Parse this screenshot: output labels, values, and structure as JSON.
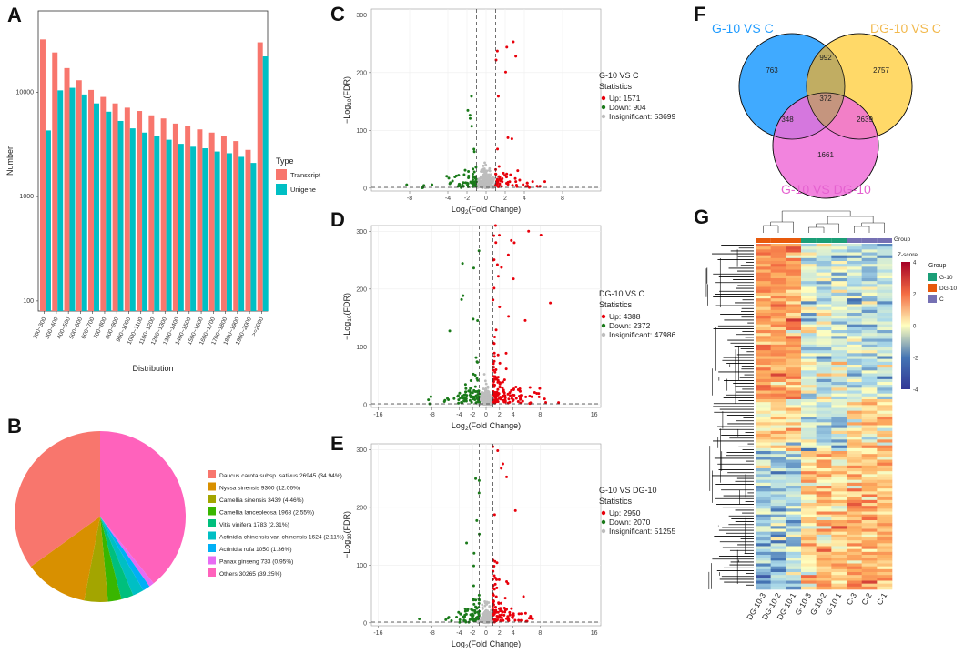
{
  "panels": {
    "A": "A",
    "B": "B",
    "C": "C",
    "D": "D",
    "E": "E",
    "F": "F",
    "G": "G"
  },
  "chart_data": [
    {
      "id": "A",
      "type": "bar",
      "title": "",
      "xlabel": "Distribution",
      "ylabel": "Number",
      "yscale": "log",
      "ylim": [
        80,
        60000
      ],
      "yticks": [
        100,
        1000,
        10000
      ],
      "yticklabels": [
        "100",
        "1000",
        "10000"
      ],
      "legend_title": "Type",
      "categories": [
        "200~300",
        "300~400",
        "400~500",
        "500~600",
        "600~700",
        "700~800",
        "800~900",
        "900~1000",
        "1000~1100",
        "1100~1200",
        "1200~1300",
        "1300~1400",
        "1400~1500",
        "1500~1600",
        "1600~1700",
        "1700~1800",
        "1800~1900",
        "1900~2000",
        ">=2000"
      ],
      "series": [
        {
          "name": "Transcript",
          "color": "#F8766D",
          "values": [
            32000,
            24000,
            17000,
            13000,
            10500,
            9000,
            7800,
            7100,
            6600,
            6000,
            5600,
            5000,
            4700,
            4400,
            4100,
            3800,
            3400,
            2800,
            30000
          ]
        },
        {
          "name": "Unigene",
          "color": "#00BFC4",
          "values": [
            4300,
            10400,
            11000,
            9500,
            7800,
            6500,
            5300,
            4500,
            4100,
            3800,
            3500,
            3200,
            3000,
            2900,
            2700,
            2600,
            2400,
            2100,
            22000
          ]
        }
      ]
    },
    {
      "id": "B",
      "type": "pie",
      "slices": [
        {
          "label": "Daucus carota subsp. sativus 26945 (34.94%)",
          "value": 34.94,
          "color": "#F8766D"
        },
        {
          "label": "Nyssa sinensis 9300 (12.06%)",
          "value": 12.06,
          "color": "#D89000"
        },
        {
          "label": "Camellia sinensis 3439 (4.46%)",
          "value": 4.46,
          "color": "#A3A500"
        },
        {
          "label": "Camellia lanceoleosa 1968 (2.55%)",
          "value": 2.55,
          "color": "#39B600"
        },
        {
          "label": "Vitis vinifera 1783 (2.31%)",
          "value": 2.31,
          "color": "#00BF7D"
        },
        {
          "label": "Actinidia chinensis var. chinensis 1624 (2.11%)",
          "value": 2.11,
          "color": "#00BFC4"
        },
        {
          "label": "Actinidia rufa 1050 (1.36%)",
          "value": 1.36,
          "color": "#00B0F6"
        },
        {
          "label": "Panax ginseng 733 (0.95%)",
          "value": 0.95,
          "color": "#E76BF3"
        },
        {
          "label": "Others 30265 (39.25%)",
          "value": 39.25,
          "color": "#FF62BC"
        }
      ]
    },
    {
      "id": "C",
      "type": "scatter",
      "xlabel": "Log2(Fold Change)",
      "ylabel": "-Log10(FDR)",
      "xlim": [
        -12,
        12
      ],
      "ylim": [
        -5,
        310
      ],
      "xticks": [
        -8,
        -4,
        -2,
        0,
        2,
        4,
        8
      ],
      "yticks": [
        0,
        100,
        200,
        300
      ],
      "legend_title": "G-10 VS C",
      "legend_subtitle": "Statistics",
      "legend": [
        "Up: 1571",
        "Down: 904",
        "Insignificant: 53699"
      ],
      "up": 1571,
      "down": 904,
      "insignificant": 53699
    },
    {
      "id": "D",
      "type": "scatter",
      "xlabel": "Log2(Fold Change)",
      "ylabel": "-Log10(FDR)",
      "xlim": [
        -17,
        17
      ],
      "ylim": [
        -5,
        310
      ],
      "xticks": [
        -16,
        -8,
        -4,
        -2,
        0,
        2,
        4,
        8,
        16
      ],
      "yticks": [
        0,
        100,
        200,
        300
      ],
      "legend_title": "DG-10 VS C",
      "legend_subtitle": "Statistics",
      "legend": [
        "Up: 4388",
        "Down: 2372",
        "Insignificant: 47986"
      ],
      "up": 4388,
      "down": 2372,
      "insignificant": 47986
    },
    {
      "id": "E",
      "type": "scatter",
      "xlabel": "Log2(Fold Change)",
      "ylabel": "-Log10(FDR)",
      "xlim": [
        -17,
        17
      ],
      "ylim": [
        -5,
        310
      ],
      "xticks": [
        -16,
        -8,
        -4,
        -2,
        0,
        2,
        4,
        8,
        16
      ],
      "yticks": [
        0,
        100,
        200,
        300
      ],
      "legend_title": "G-10 VS DG-10",
      "legend_subtitle": "Statistics",
      "legend": [
        "Up: 2950",
        "Down: 2070",
        "Insignificant: 51255"
      ],
      "up": 2950,
      "down": 2070,
      "insignificant": 51255
    },
    {
      "id": "F",
      "type": "venn",
      "sets": [
        {
          "name": "G-10 VS C",
          "color": "#1E9BFF"
        },
        {
          "name": "DG-10 VS C",
          "color": "#FFD24D"
        },
        {
          "name": "G-10 VS DG-10",
          "color": "#F06ED8"
        }
      ],
      "regions": {
        "A_only": 763,
        "B_only": 2757,
        "C_only": 1661,
        "AB": 992,
        "AC": 348,
        "BC": 2639,
        "ABC": 372
      }
    },
    {
      "id": "G",
      "type": "heatmap",
      "columns": [
        "DG-10-3",
        "DG-10-2",
        "DG-10-1",
        "G-10-3",
        "G-10-2",
        "G-10-1",
        "C-3",
        "C-2",
        "C-1"
      ],
      "groups": [
        {
          "name": "G-10",
          "color": "#1B9E77"
        },
        {
          "name": "DG-10",
          "color": "#E7590C"
        },
        {
          "name": "C",
          "color": "#7570B3"
        }
      ],
      "column_groups": [
        "DG-10",
        "DG-10",
        "DG-10",
        "G-10",
        "G-10",
        "G-10",
        "C",
        "C",
        "C"
      ],
      "group_label": "Group",
      "zscore_label": "Z-score",
      "zscore_ticks": [
        4,
        2,
        0,
        -2,
        -4
      ],
      "legend_title": "Group"
    }
  ]
}
